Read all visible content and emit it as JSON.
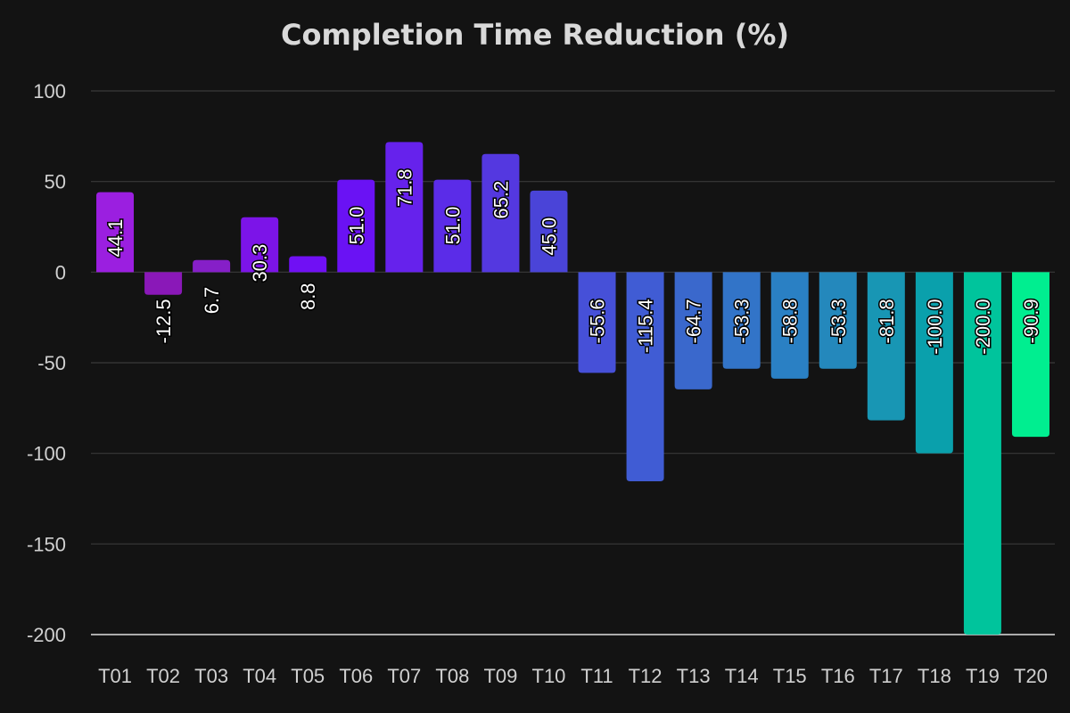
{
  "chart_data": {
    "type": "bar",
    "title": "Completion Time Reduction (%)",
    "xlabel": "",
    "ylabel": "",
    "ylim": [
      -200,
      100
    ],
    "yticks": [
      100,
      50,
      0,
      -50,
      -100,
      -150,
      -200
    ],
    "grid": true,
    "categories": [
      "T01",
      "T02",
      "T03",
      "T04",
      "T05",
      "T06",
      "T07",
      "T08",
      "T09",
      "T10",
      "T11",
      "T12",
      "T13",
      "T14",
      "T15",
      "T16",
      "T17",
      "T18",
      "T19",
      "T20"
    ],
    "values": [
      44.1,
      -12.5,
      6.7,
      30.3,
      8.8,
      51.0,
      71.8,
      51.0,
      65.2,
      45.0,
      -55.6,
      -115.4,
      -64.7,
      -53.3,
      -58.8,
      -53.3,
      -81.8,
      -100.0,
      -200.0,
      -90.9
    ],
    "data_labels": [
      "44.1",
      "-12.5",
      "6.7",
      "30.3",
      "8.8",
      "51.0",
      "71.8",
      "51.0",
      "65.2",
      "45.0",
      "-55.6",
      "-115.4",
      "-64.7",
      "-53.3",
      "-58.8",
      "-53.3",
      "-81.8",
      "-100.0",
      "-200.0",
      "-90.9"
    ],
    "colors": [
      "#9b1fe0",
      "#8a18b8",
      "#861fc8",
      "#7c14e8",
      "#7010f4",
      "#6a12f4",
      "#6622ec",
      "#5b2ce8",
      "#5438e0",
      "#4a44d8",
      "#4650d8",
      "#405cd4",
      "#3a68cc",
      "#3274c8",
      "#2a80c4",
      "#2488bc",
      "#1896b4",
      "#0aa0ac",
      "#00c49c",
      "#00ee90"
    ]
  }
}
